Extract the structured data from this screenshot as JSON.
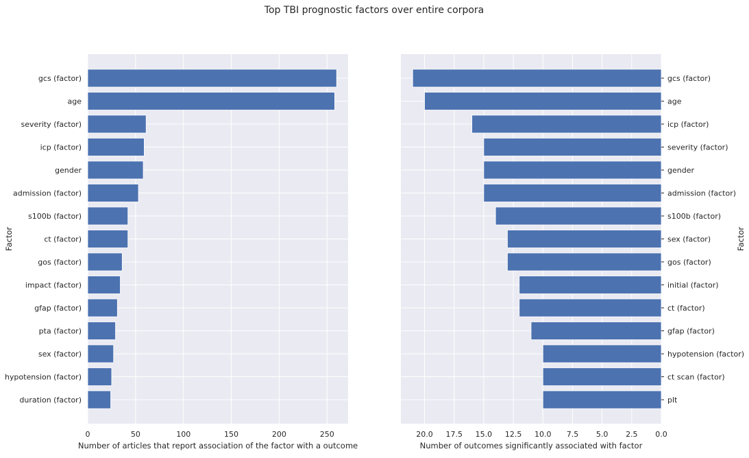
{
  "chart_data": [
    {
      "type": "bar",
      "orientation": "horizontal",
      "title": "Top TBI prognostic factors over entire corpora",
      "xlabel": "Number of articles that report association of the factor with a outcome",
      "ylabel": "Factor",
      "xlim": [
        0,
        272
      ],
      "xticks": [
        "0",
        "50",
        "100",
        "150",
        "200",
        "250"
      ],
      "xtick_values": [
        0,
        50,
        100,
        150,
        200,
        250
      ],
      "grid": true,
      "categories": [
        "gcs (factor)",
        "age",
        "severity (factor)",
        "icp (factor)",
        "gender",
        "admission (factor)",
        "s100b (factor)",
        "ct (factor)",
        "gos (factor)",
        "impact (factor)",
        "gfap (factor)",
        "pta (factor)",
        "sex (factor)",
        "hypotension (factor)",
        "duration (factor)"
      ],
      "values": [
        260,
        258,
        61,
        59,
        58,
        53,
        42,
        42,
        36,
        34,
        31,
        29,
        27,
        25,
        24
      ],
      "color": "#4c72b0"
    },
    {
      "type": "bar",
      "orientation": "horizontal",
      "xlabel": "Number of outcomes significantly associated with factor",
      "ylabel": "Factor",
      "xlim": [
        22,
        0
      ],
      "inverted_x": true,
      "yaxis_side": "right",
      "xticks": [
        "20.0",
        "17.5",
        "15.0",
        "12.5",
        "10.0",
        "7.5",
        "5.0",
        "2.5",
        "0.0"
      ],
      "xtick_values": [
        20,
        17.5,
        15,
        12.5,
        10,
        7.5,
        5,
        2.5,
        0
      ],
      "grid": true,
      "categories": [
        "gcs (factor)",
        "age",
        "icp (factor)",
        "severity (factor)",
        "gender",
        "admission (factor)",
        "s100b (factor)",
        "sex (factor)",
        "gos (factor)",
        "initial (factor)",
        "ct (factor)",
        "gfap (factor)",
        "hypotension (factor)",
        "ct scan (factor)",
        "plt"
      ],
      "values": [
        21,
        20,
        16,
        15,
        15,
        15,
        14,
        13,
        13,
        12,
        12,
        11,
        10,
        10,
        10
      ],
      "color": "#4c72b0"
    }
  ]
}
